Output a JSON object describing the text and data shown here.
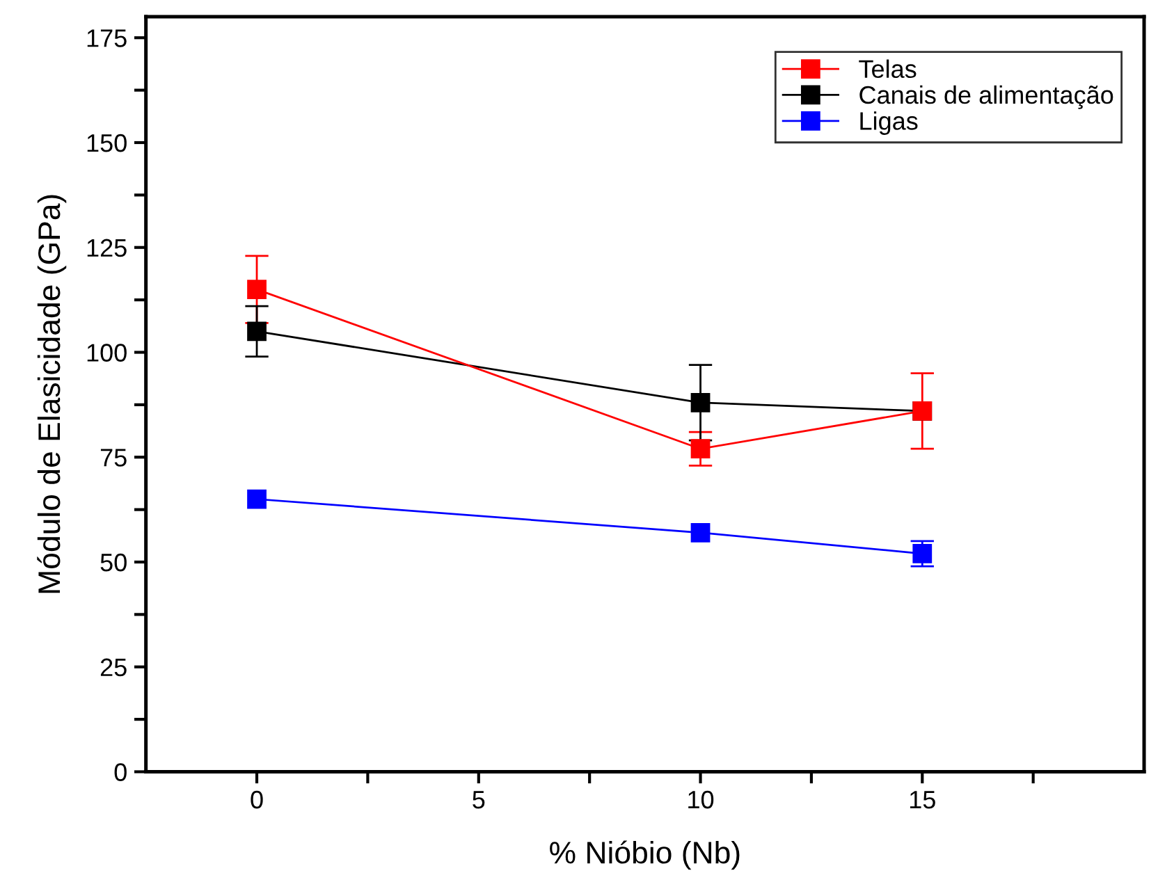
{
  "chart_data": {
    "type": "line",
    "xlabel": "% Nióbio (Nb)",
    "ylabel": "Módulo de Elasicidade (GPa)",
    "x": [
      0,
      10,
      15
    ],
    "series": [
      {
        "name": "Telas",
        "color": "#ff0000",
        "values": [
          115,
          77,
          86
        ],
        "errors": [
          8,
          4,
          9
        ]
      },
      {
        "name": "Canais de alimentação",
        "color": "#000000",
        "values": [
          105,
          88,
          86
        ],
        "errors": [
          6,
          9,
          null
        ]
      },
      {
        "name": "Ligas",
        "color": "#0000ff",
        "values": [
          65,
          57,
          52
        ],
        "errors": [
          null,
          null,
          3
        ]
      }
    ],
    "xlim": [
      -2.5,
      20
    ],
    "xticks": [
      0,
      {
        "value": 2.5,
        "label": null
      },
      5,
      {
        "value": 7.5,
        "label": null
      },
      10,
      {
        "value": 12.5,
        "label": null
      },
      15,
      {
        "value": 17.5,
        "label": null
      }
    ],
    "ylim": [
      0,
      180
    ],
    "yticks": [
      0,
      {
        "value": 12.5,
        "label": null
      },
      25,
      {
        "value": 37.5,
        "label": null
      },
      50,
      {
        "value": 62.5,
        "label": null
      },
      75,
      {
        "value": 87.5,
        "label": null
      },
      100,
      {
        "value": 112.5,
        "label": null
      },
      125,
      {
        "value": 137.5,
        "label": null
      },
      150,
      {
        "value": 162.5,
        "label": null
      },
      175
    ],
    "marker": "square",
    "line_style": "solid",
    "grid": false,
    "legend": "top right"
  }
}
